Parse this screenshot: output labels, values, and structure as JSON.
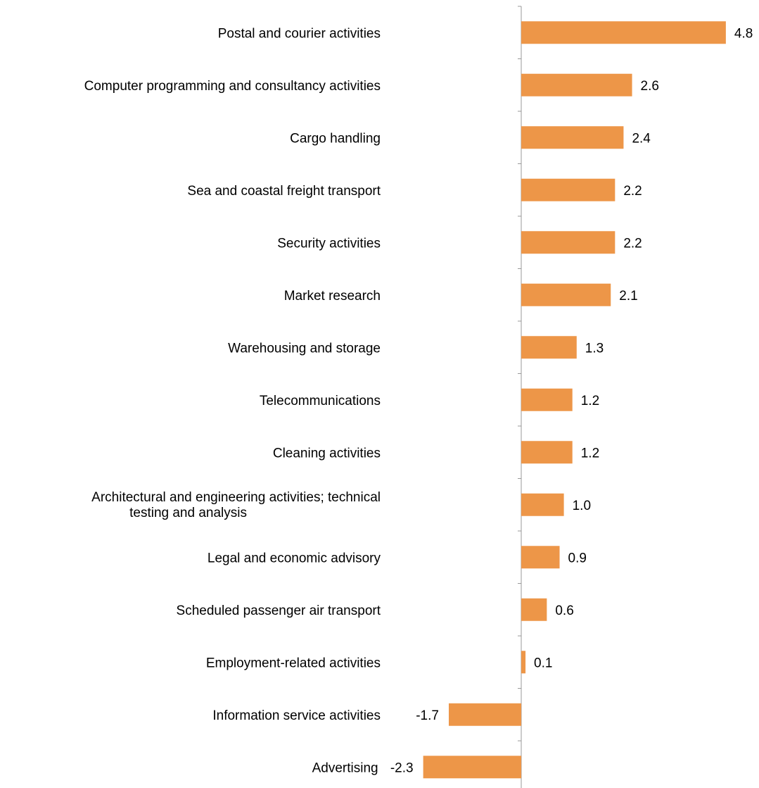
{
  "chart_data": {
    "type": "bar",
    "orientation": "horizontal",
    "bar_color": "#ED9648",
    "axis_color": "#999999",
    "categories": [
      "Postal and courier activities",
      "Computer programming and consultancy activities",
      "Cargo handling",
      "Sea and coastal freight transport",
      "Security activities",
      "Market research",
      "Warehousing and storage",
      "Telecommunications",
      "Cleaning activities",
      "Architectural and engineering activities; technical testing and analysis",
      "Legal and economic advisory",
      "Scheduled passenger air transport",
      "Employment-related activities",
      "Information service activities",
      "Advertising"
    ],
    "values": [
      4.8,
      2.6,
      2.4,
      2.2,
      2.2,
      2.1,
      1.3,
      1.2,
      1.2,
      1.0,
      0.9,
      0.6,
      0.1,
      -1.7,
      -2.3
    ],
    "value_labels": [
      "4.8",
      "2.6",
      "2.4",
      "2.2",
      "2.2",
      "2.1",
      "1.3",
      "1.2",
      "1.2",
      "1.0",
      "0.9",
      "0.6",
      "0.1",
      "-1.7",
      "-2.3"
    ],
    "xlim": [
      -2.3,
      4.8
    ],
    "grid": false,
    "legend": "none"
  }
}
